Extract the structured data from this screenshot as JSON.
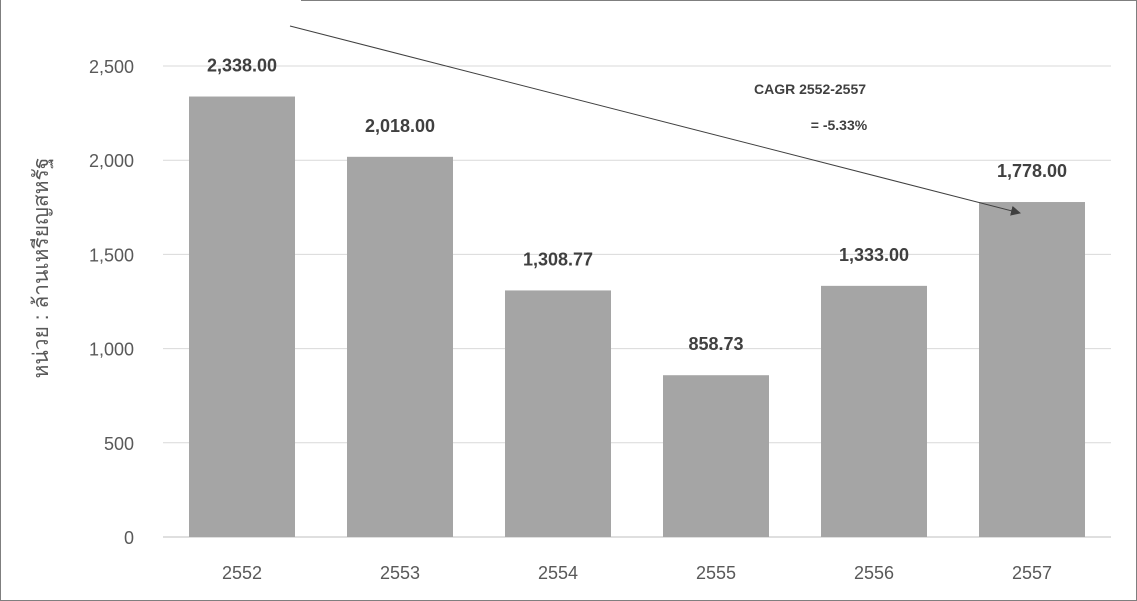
{
  "chart_data": {
    "type": "bar",
    "categories": [
      "2552",
      "2553",
      "2554",
      "2555",
      "2556",
      "2557"
    ],
    "values": [
      2338.0,
      2018.0,
      1308.77,
      858.73,
      1333.0,
      1778.0
    ],
    "data_labels": [
      "2,338.00",
      "2,018.00",
      "1,308.77",
      "858.73",
      "1,333.00",
      "1,778.00"
    ],
    "title": "",
    "xlabel": "",
    "ylabel": "หน่วย : ล้านเหรียญสหรัฐ",
    "ylim": [
      0,
      2500
    ],
    "yticks": [
      0,
      500,
      1000,
      1500,
      2000,
      2500
    ],
    "ytick_labels": [
      "0",
      "500",
      "1,000",
      "1,500",
      "2,000",
      "2,500"
    ],
    "grid": true,
    "bar_color": "#a5a5a5",
    "gridline_color": "#d9d9d9",
    "annotation": {
      "line1": "CAGR 2552-2557",
      "line2": "= -5.33%"
    }
  }
}
